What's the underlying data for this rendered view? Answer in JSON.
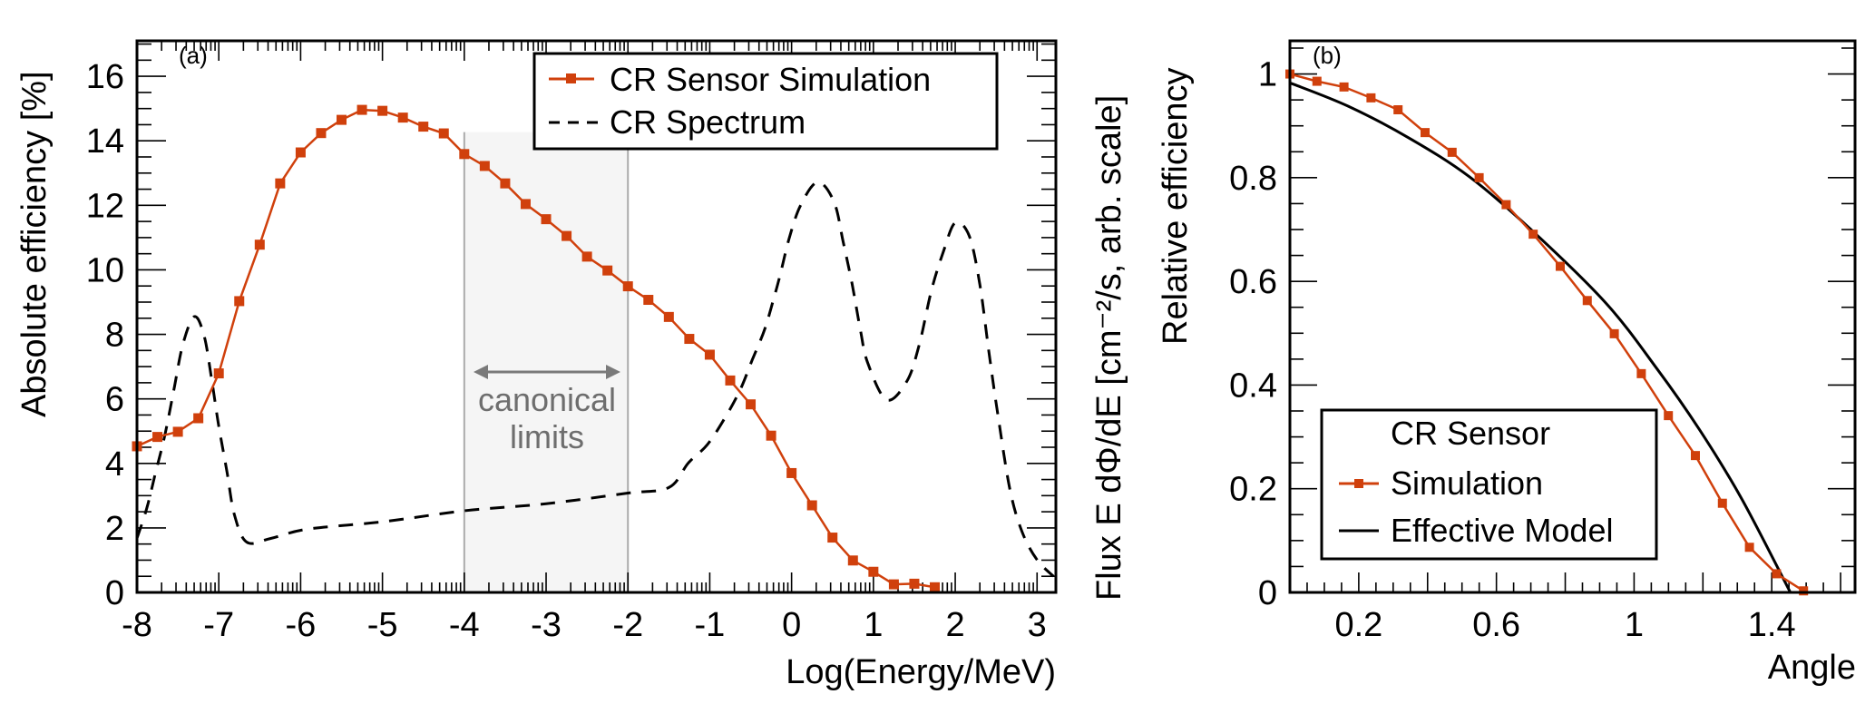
{
  "chart_data": [
    {
      "panel": "(a)",
      "type": "line",
      "xlabel": "Log(Energy/MeV)",
      "ylabel": "Absolute efficiency [%]",
      "ylabel_right": "Flux E dΦ/dE [cm⁻²/s, arb. scale]",
      "xlim": [
        -8,
        3.23
      ],
      "ylim": [
        0,
        17.1
      ],
      "xticks": [
        -8,
        -7,
        -6,
        -5,
        -4,
        -3,
        -2,
        -1,
        0,
        1,
        2,
        3
      ],
      "yticks": [
        0,
        2,
        4,
        6,
        8,
        10,
        12,
        14,
        16
      ],
      "grid": false,
      "legend": {
        "position": "top-right",
        "entries": [
          "CR Sensor Simulation",
          "CR Spectrum"
        ]
      },
      "shaded_region": {
        "x": [
          -4,
          -2
        ],
        "label_line1": "canonical",
        "label_line2": "limits",
        "color": "#f5f5f5"
      },
      "series": [
        {
          "name": "CR Sensor Simulation",
          "style": "line+square-markers",
          "color": "#d0400c",
          "x": [
            -8,
            -7.75,
            -7.5,
            -7.25,
            -7,
            -6.75,
            -6.5,
            -6.25,
            -6,
            -5.75,
            -5.5,
            -5.25,
            -5,
            -4.75,
            -4.5,
            -4.25,
            -4,
            -3.75,
            -3.5,
            -3.25,
            -3,
            -2.75,
            -2.5,
            -2.25,
            -2,
            -1.75,
            -1.5,
            -1.25,
            -1,
            -0.75,
            -0.5,
            -0.25,
            0,
            0.25,
            0.5,
            0.75,
            1,
            1.25,
            1.5,
            1.75
          ],
          "y": [
            4.53,
            4.82,
            4.98,
            5.4,
            6.79,
            9.03,
            10.78,
            12.68,
            13.64,
            14.24,
            14.65,
            14.96,
            14.93,
            14.72,
            14.44,
            14.23,
            13.59,
            13.22,
            12.68,
            12.04,
            11.57,
            11.05,
            10.41,
            9.98,
            9.49,
            9.07,
            8.54,
            7.86,
            7.37,
            6.57,
            5.83,
            4.86,
            3.7,
            2.7,
            1.7,
            0.99,
            0.64,
            0.25,
            0.27,
            0.16
          ]
        },
        {
          "name": "CR Spectrum",
          "style": "dashed",
          "color": "#000000",
          "units": "arbitrary (plotted on left-axis scale)",
          "x": [
            -8.0,
            -7.88,
            -7.77,
            -7.66,
            -7.55,
            -7.44,
            -7.3,
            -7.18,
            -7.09,
            -7.0,
            -6.9,
            -6.81,
            -6.66,
            -6.37,
            -5.92,
            -5.0,
            -4.0,
            -3.0,
            -2.0,
            -1.5,
            -1.26,
            -1.03,
            -0.81,
            -0.63,
            -0.48,
            -0.33,
            -0.22,
            -0.14,
            -0.03,
            0.11,
            0.32,
            0.52,
            0.63,
            0.74,
            0.84,
            0.93,
            1.16,
            1.41,
            1.56,
            1.71,
            1.86,
            2.0,
            2.17,
            2.3,
            2.41,
            2.52,
            2.67,
            2.82,
            3.0,
            3.2
          ],
          "y": [
            1.68,
            2.61,
            3.74,
            4.87,
            6.27,
            7.68,
            8.55,
            7.96,
            6.65,
            5.15,
            3.74,
            2.42,
            1.56,
            1.67,
            1.96,
            2.19,
            2.53,
            2.75,
            3.08,
            3.25,
            4.02,
            4.58,
            5.43,
            6.27,
            7.21,
            8.15,
            9.09,
            9.84,
            10.97,
            12.0,
            12.72,
            12.1,
            10.87,
            9.56,
            8.15,
            7.12,
            5.97,
            6.55,
            7.68,
            9.37,
            10.6,
            11.46,
            11.06,
            9.56,
            7.49,
            5.52,
            3.17,
            1.86,
            1.01,
            0.5
          ]
        }
      ]
    },
    {
      "panel": "(b)",
      "type": "line",
      "xlabel": "Angle",
      "ylabel": "Relative efficiency",
      "xlim": [
        0,
        1.642
      ],
      "ylim": [
        0,
        1.064
      ],
      "xticks": [
        0.2,
        0.6,
        1,
        1.4
      ],
      "yticks": [
        0,
        0.2,
        0.4,
        0.6,
        0.8,
        1
      ],
      "grid": false,
      "legend": {
        "position": "bottom-left",
        "header": "CR Sensor",
        "entries": [
          "Simulation",
          "Effective Model"
        ]
      },
      "series": [
        {
          "name": "Simulation",
          "style": "line+square-markers",
          "color": "#d0400c",
          "x": [
            0,
            0.0785,
            0.1571,
            0.2356,
            0.3142,
            0.3927,
            0.4712,
            0.5498,
            0.6283,
            0.7069,
            0.7854,
            0.8639,
            0.9425,
            1.021,
            1.0996,
            1.1781,
            1.2566,
            1.3352,
            1.4137,
            1.4923
          ],
          "y": [
            1.0,
            0.986,
            0.975,
            0.954,
            0.931,
            0.887,
            0.849,
            0.8,
            0.748,
            0.691,
            0.629,
            0.563,
            0.499,
            0.422,
            0.341,
            0.264,
            0.172,
            0.087,
            0.036,
            0.003
          ]
        },
        {
          "name": "Effective Model",
          "style": "solid",
          "color": "#000000",
          "x": [
            0,
            0.169,
            0.345,
            0.521,
            0.697,
            0.917,
            1.067,
            1.19,
            1.313,
            1.454
          ],
          "y": [
            0.983,
            0.938,
            0.877,
            0.802,
            0.702,
            0.559,
            0.431,
            0.314,
            0.18,
            0.0
          ]
        }
      ]
    }
  ]
}
